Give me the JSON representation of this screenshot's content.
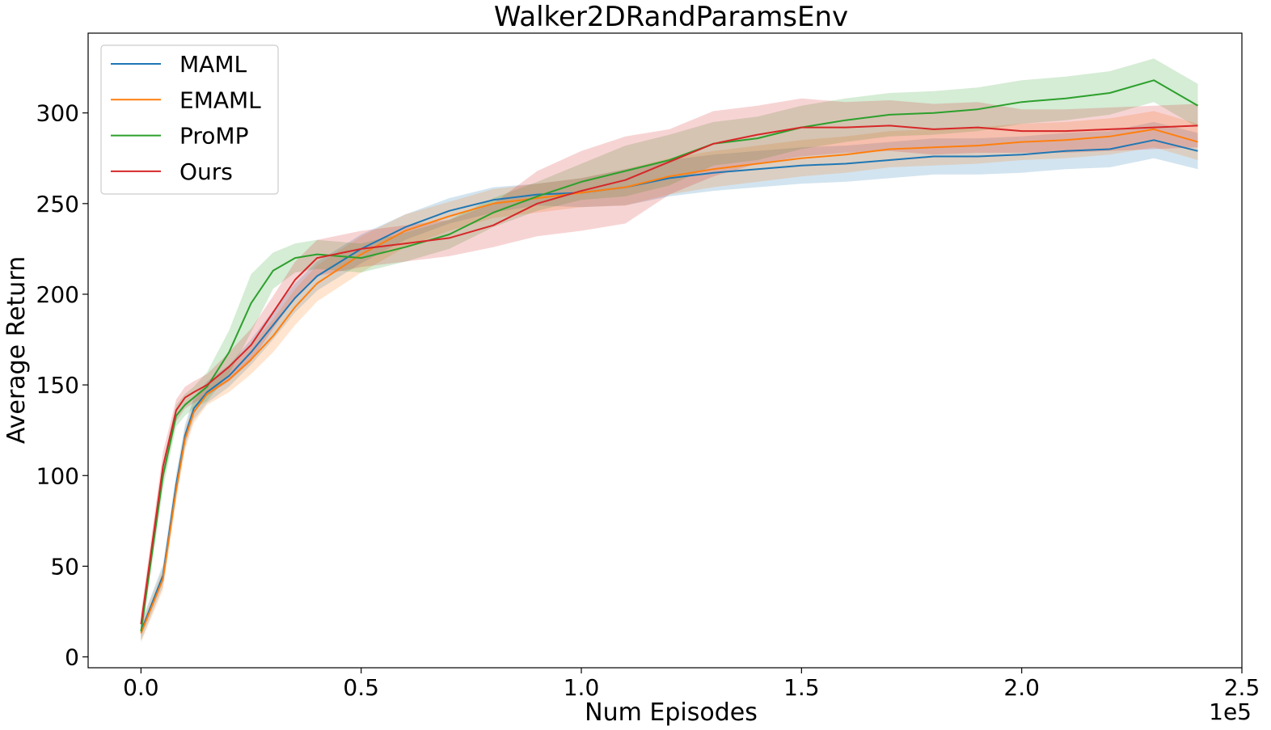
{
  "chart_data": {
    "type": "line",
    "title": "Walker2DRandParamsEnv",
    "xlabel": "Num Episodes",
    "ylabel": "Average Return",
    "x_offset_label": "1e5",
    "xlim": [
      -0.12,
      2.5
    ],
    "ylim": [
      -6,
      344
    ],
    "x_ticks": [
      0.0,
      0.5,
      1.0,
      1.5,
      2.0,
      2.5
    ],
    "x_tick_labels": [
      "0.0",
      "0.5",
      "1.0",
      "1.5",
      "2.0",
      "2.5"
    ],
    "y_ticks": [
      0,
      50,
      100,
      150,
      200,
      250,
      300
    ],
    "y_tick_labels": [
      "0",
      "50",
      "100",
      "150",
      "200",
      "250",
      "300"
    ],
    "grid": false,
    "legend_position": "top-left",
    "x": [
      0.0,
      0.05,
      0.08,
      0.1,
      0.12,
      0.15,
      0.2,
      0.25,
      0.3,
      0.35,
      0.4,
      0.5,
      0.6,
      0.7,
      0.8,
      0.9,
      1.0,
      1.1,
      1.2,
      1.3,
      1.4,
      1.5,
      1.6,
      1.7,
      1.8,
      1.9,
      2.0,
      2.1,
      2.2,
      2.3,
      2.4
    ],
    "series": [
      {
        "name": "MAML",
        "color": "#1f77b4",
        "values": [
          14,
          45,
          95,
          122,
          137,
          146,
          155,
          168,
          183,
          198,
          210,
          225,
          237,
          246,
          252,
          255,
          256,
          259,
          264,
          267,
          269,
          271,
          272,
          274,
          276,
          276,
          277,
          279,
          280,
          285,
          279
        ],
        "band": [
          5,
          6,
          6,
          6,
          6,
          6,
          6,
          7,
          8,
          8,
          8,
          8,
          7,
          7,
          7,
          6,
          8,
          10,
          10,
          10,
          10,
          10,
          10,
          10,
          10,
          10,
          10,
          10,
          10,
          10,
          10
        ]
      },
      {
        "name": "EMAML",
        "color": "#ff7f0e",
        "values": [
          13,
          43,
          92,
          120,
          135,
          145,
          153,
          164,
          177,
          193,
          206,
          222,
          235,
          243,
          250,
          253,
          256,
          259,
          265,
          269,
          272,
          275,
          277,
          280,
          281,
          282,
          284,
          285,
          287,
          291,
          284
        ],
        "band": [
          5,
          6,
          6,
          6,
          6,
          6,
          7,
          8,
          9,
          10,
          10,
          10,
          9,
          8,
          8,
          8,
          8,
          10,
          10,
          10,
          10,
          10,
          10,
          10,
          10,
          10,
          10,
          10,
          10,
          10,
          10
        ]
      },
      {
        "name": "ProMP",
        "color": "#2ca02c",
        "values": [
          14,
          100,
          133,
          139,
          143,
          149,
          168,
          195,
          213,
          220,
          222,
          220,
          226,
          233,
          245,
          254,
          262,
          268,
          274,
          283,
          286,
          292,
          296,
          299,
          300,
          302,
          306,
          308,
          311,
          318,
          304
        ],
        "band": [
          5,
          7,
          6,
          6,
          6,
          8,
          12,
          16,
          10,
          8,
          8,
          8,
          8,
          8,
          8,
          8,
          10,
          14,
          14,
          12,
          12,
          12,
          12,
          12,
          12,
          12,
          12,
          12,
          12,
          12,
          12
        ]
      },
      {
        "name": "Ours",
        "color": "#d62728",
        "values": [
          18,
          105,
          136,
          143,
          146,
          150,
          160,
          172,
          190,
          208,
          220,
          225,
          228,
          231,
          238,
          250,
          257,
          263,
          273,
          283,
          288,
          292,
          292,
          293,
          291,
          292,
          290,
          290,
          291,
          292,
          293
        ],
        "band": [
          6,
          8,
          6,
          6,
          6,
          6,
          8,
          9,
          9,
          10,
          10,
          10,
          10,
          10,
          12,
          18,
          22,
          24,
          18,
          18,
          16,
          16,
          14,
          14,
          14,
          14,
          12,
          12,
          12,
          12,
          12
        ]
      }
    ]
  }
}
